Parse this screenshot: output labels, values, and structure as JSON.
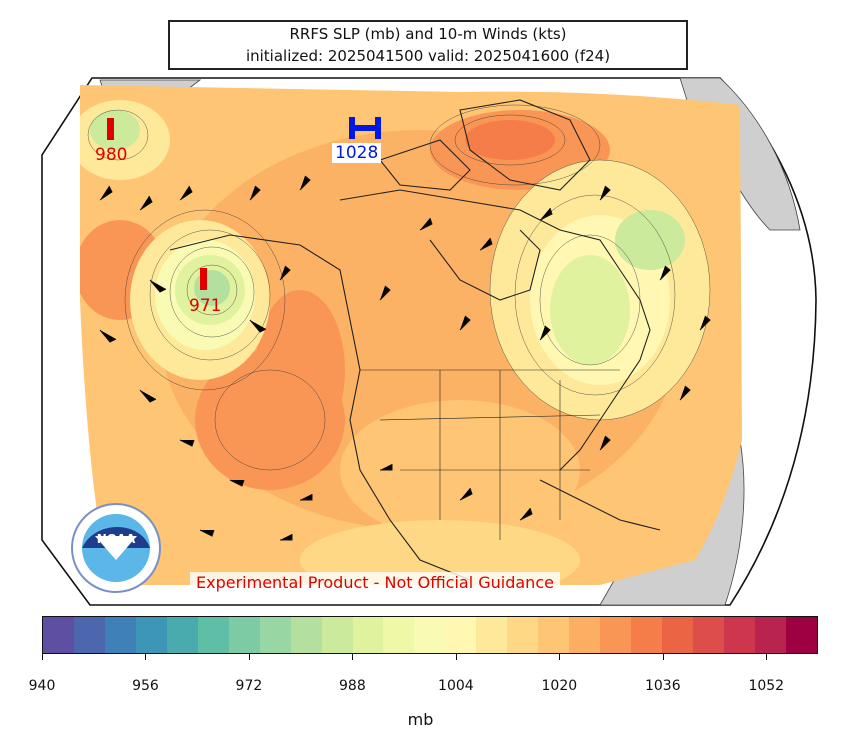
{
  "title": {
    "line1": "RRFS SLP (mb) and 10-m Winds (kts)",
    "line2": "initialized: 2025041500 valid: 2025041600 (f24)"
  },
  "pressure_centers": [
    {
      "type": "L",
      "value": "980",
      "color": "#e00000"
    },
    {
      "type": "H",
      "value": "1028",
      "color": "#0018e0"
    },
    {
      "type": "L",
      "value": "971",
      "color": "#e00000"
    }
  ],
  "logo": {
    "name": "NOAA",
    "text": "NOAA"
  },
  "watermark": "Experimental Product - Not Official Guidance",
  "colorbar": {
    "label": "mb",
    "ticks": [
      "940",
      "956",
      "972",
      "988",
      "1004",
      "1020",
      "1036",
      "1052"
    ],
    "colors": [
      "#5e4fa2",
      "#4d67ae",
      "#3f80b9",
      "#3e96b7",
      "#4aabae",
      "#5fbfa6",
      "#7ccba5",
      "#98d6a4",
      "#b3e09f",
      "#cbea9c",
      "#e0f29e",
      "#eff8a6",
      "#f9fbb5",
      "#fff7b2",
      "#fee99b",
      "#fed884",
      "#fdc574",
      "#fcae63",
      "#f99656",
      "#f57d4a",
      "#eb6444",
      "#dd4d4a",
      "#cd364d",
      "#b8244e",
      "#9e0142"
    ]
  }
}
